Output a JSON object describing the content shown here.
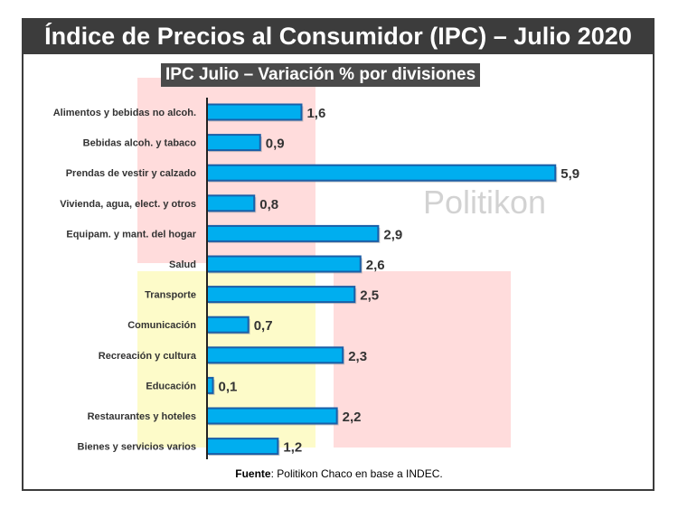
{
  "header": {
    "title": "Índice de Precios al Consumidor (IPC) – Julio 2020"
  },
  "chart_data": {
    "type": "bar",
    "orientation": "horizontal",
    "title": "IPC Julio – Variación % por divisiones",
    "categories": [
      "Alimentos y bebidas no alcoh.",
      "Bebidas alcoh. y tabaco",
      "Prendas de vestir y calzado",
      "Vivienda, agua, elect. y otros",
      "Equipam. y mant. del hogar",
      "Salud",
      "Transporte",
      "Comunicación",
      "Recreación y cultura",
      "Educación",
      "Restaurantes y hoteles",
      "Bienes y servicios varios"
    ],
    "values": [
      1.6,
      0.9,
      5.9,
      0.8,
      2.9,
      2.6,
      2.5,
      0.7,
      2.3,
      0.1,
      2.2,
      1.2
    ],
    "labels": [
      "1,6",
      "0,9",
      "5,9",
      "0,8",
      "2,9",
      "2,6",
      "2,5",
      "0,7",
      "2,3",
      "0,1",
      "2,2",
      "1,2"
    ],
    "bar_color": "#00aeef",
    "bar_border": "#1a5fa8",
    "grid": false
  },
  "watermark": "Politikon",
  "source": {
    "label": "Fuente",
    "text": ": Politikon Chaco en base a INDEC."
  }
}
